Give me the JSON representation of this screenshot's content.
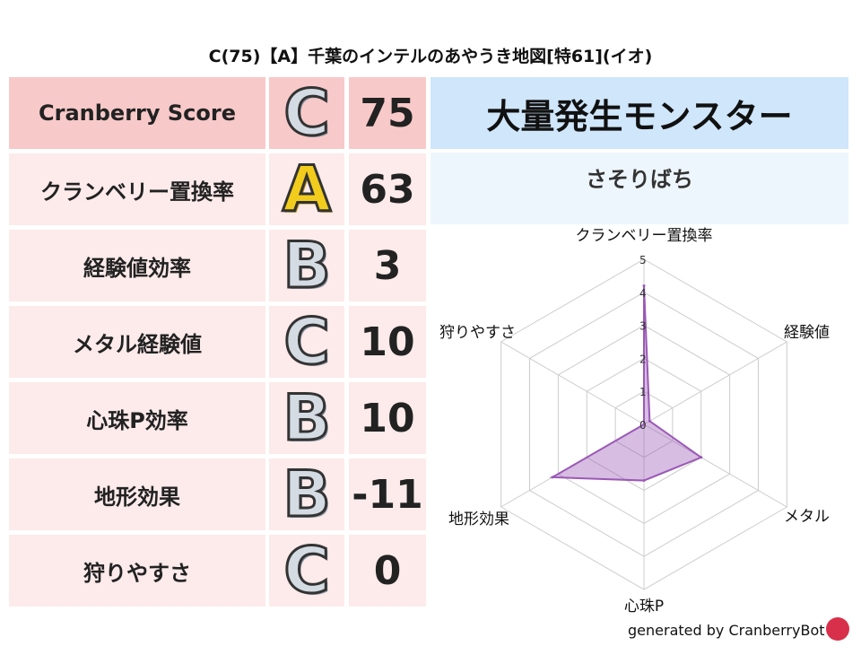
{
  "title": "C(75)【A】千葉のインテルのあやうき地図[特61](イオ)",
  "rows": [
    {
      "label": "Cranberry Score",
      "grade": "C",
      "value": "75"
    },
    {
      "label": "クランベリー置換率",
      "grade": "A",
      "value": "63"
    },
    {
      "label": "経験値効率",
      "grade": "B",
      "value": "3"
    },
    {
      "label": "メタル経験値",
      "grade": "C",
      "value": "10"
    },
    {
      "label": "心珠P効率",
      "grade": "B",
      "value": "10"
    },
    {
      "label": "地形効果",
      "grade": "B",
      "value": "-11"
    },
    {
      "label": "狩りやすさ",
      "grade": "C",
      "value": "0"
    }
  ],
  "monster": {
    "header": "大量発生モンスター",
    "name": "さそりばち"
  },
  "footer": "generated by CranberryBot",
  "chart_data": {
    "type": "radar",
    "axes": [
      "クランベリー置換率",
      "経験値",
      "メタル",
      "心珠P",
      "地形効果",
      "狩りやすさ"
    ],
    "values": [
      4.2,
      0.2,
      2.0,
      1.7,
      3.2,
      0.0
    ],
    "range": [
      0,
      5
    ],
    "ticks": [
      "0",
      "1",
      "2",
      "3",
      "4",
      "5"
    ],
    "color": "#9b59b6",
    "grid": true
  }
}
